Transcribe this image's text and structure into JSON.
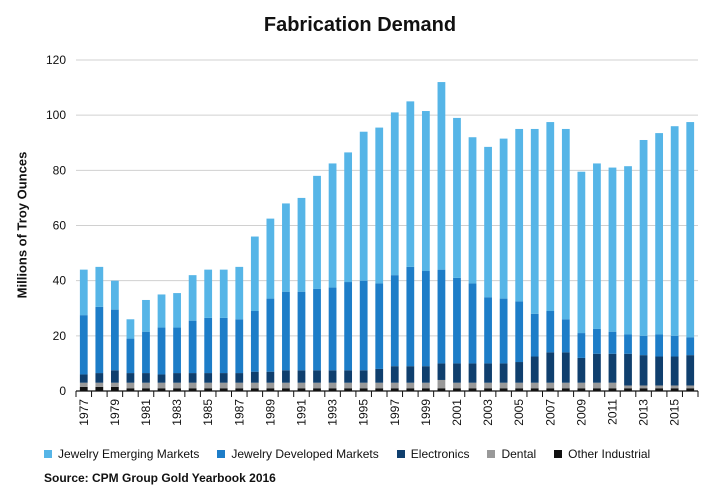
{
  "chart_data": {
    "type": "bar",
    "stacked": true,
    "title": "Fabrication Demand",
    "xlabel": "",
    "ylabel": "Millions of Troy Ounces",
    "ylim": [
      0,
      120
    ],
    "yticks": [
      0,
      20,
      40,
      60,
      80,
      100,
      120
    ],
    "tick_years": [
      "1977",
      "1979",
      "1981",
      "1983",
      "1985",
      "1987",
      "1989",
      "1991",
      "1993",
      "1995",
      "1997",
      "1999",
      "2001",
      "2003",
      "2005",
      "2007",
      "2009",
      "2011",
      "2013",
      "2015"
    ],
    "categories": [
      "1977",
      "1978",
      "1979",
      "1980",
      "1981",
      "1982",
      "1983",
      "1984",
      "1985",
      "1986",
      "1987",
      "1988",
      "1989",
      "1990",
      "1991",
      "1992",
      "1993",
      "1994",
      "1995",
      "1996",
      "1997",
      "1998",
      "1999",
      "2000",
      "2001",
      "2002",
      "2003",
      "2004",
      "2005",
      "2006",
      "2007",
      "2008",
      "2009",
      "2010",
      "2011",
      "2012",
      "2013",
      "2014",
      "2015",
      "2016"
    ],
    "series": [
      {
        "name": "Other Industrial",
        "color": "#111111",
        "values": [
          1.5,
          1.5,
          1.5,
          1,
          1,
          1,
          1,
          1,
          1,
          1,
          1,
          1,
          1,
          1,
          1,
          1,
          1,
          1,
          1,
          1,
          1,
          1,
          1,
          1,
          1,
          1,
          1,
          1,
          1,
          1,
          1,
          1,
          1,
          1,
          1,
          1,
          1,
          1,
          1,
          1
        ]
      },
      {
        "name": "Dental",
        "color": "#999999",
        "values": [
          1.5,
          1.5,
          1.5,
          2,
          2,
          2,
          2,
          2,
          2,
          2,
          2,
          2,
          2,
          2,
          2,
          2,
          2,
          2,
          2,
          2,
          2,
          2,
          2,
          3,
          2,
          2,
          2,
          2,
          2,
          2,
          2,
          2,
          2,
          2,
          2,
          1,
          1,
          1,
          1,
          1
        ]
      },
      {
        "name": "Electronics",
        "color": "#0f3f6e",
        "values": [
          3,
          3.5,
          4.5,
          3.5,
          3.5,
          3,
          3.5,
          3.5,
          3.5,
          3.5,
          3.5,
          4,
          4,
          4.5,
          4.5,
          4.5,
          4.5,
          4.5,
          4.5,
          5,
          6,
          6,
          6,
          6,
          7,
          7,
          7,
          7,
          7.5,
          9.5,
          11,
          11,
          9,
          10.5,
          10.5,
          11.5,
          11,
          10.5,
          10.5,
          11
        ]
      },
      {
        "name": "Jewelry Developed Markets",
        "color": "#1d7dc8",
        "values": [
          21.5,
          24,
          22,
          12.5,
          15,
          17,
          16.5,
          19,
          20,
          20,
          19.5,
          22,
          26.5,
          28.5,
          28.5,
          29.5,
          30,
          32,
          32.5,
          31,
          33,
          36,
          34.5,
          34,
          31,
          29,
          24,
          23.5,
          22,
          15.5,
          15,
          12,
          9,
          9,
          8,
          7,
          7,
          8,
          7.5,
          6.5
        ]
      },
      {
        "name": "Jewelry Emerging Markets",
        "color": "#56b5e7",
        "values": [
          16.5,
          14.5,
          10.5,
          7,
          11.5,
          12,
          12.5,
          16.5,
          17.5,
          17.5,
          19,
          27,
          29,
          32,
          34,
          41,
          45,
          47,
          54,
          56.5,
          59,
          60,
          58,
          68,
          58,
          53,
          54.5,
          58,
          62.5,
          67,
          68.5,
          69,
          58.5,
          60,
          59.5,
          61,
          71,
          73,
          76,
          78
        ]
      }
    ]
  },
  "legend": {
    "items": [
      {
        "label": "Jewelry Emerging Markets",
        "color": "#56b5e7"
      },
      {
        "label": "Jewelry Developed Markets",
        "color": "#1d7dc8"
      },
      {
        "label": "Electronics",
        "color": "#0f3f6e"
      },
      {
        "label": "Dental",
        "color": "#999999"
      },
      {
        "label": "Other Industrial",
        "color": "#111111"
      }
    ]
  },
  "source": "Source: CPM Group Gold Yearbook 2016"
}
